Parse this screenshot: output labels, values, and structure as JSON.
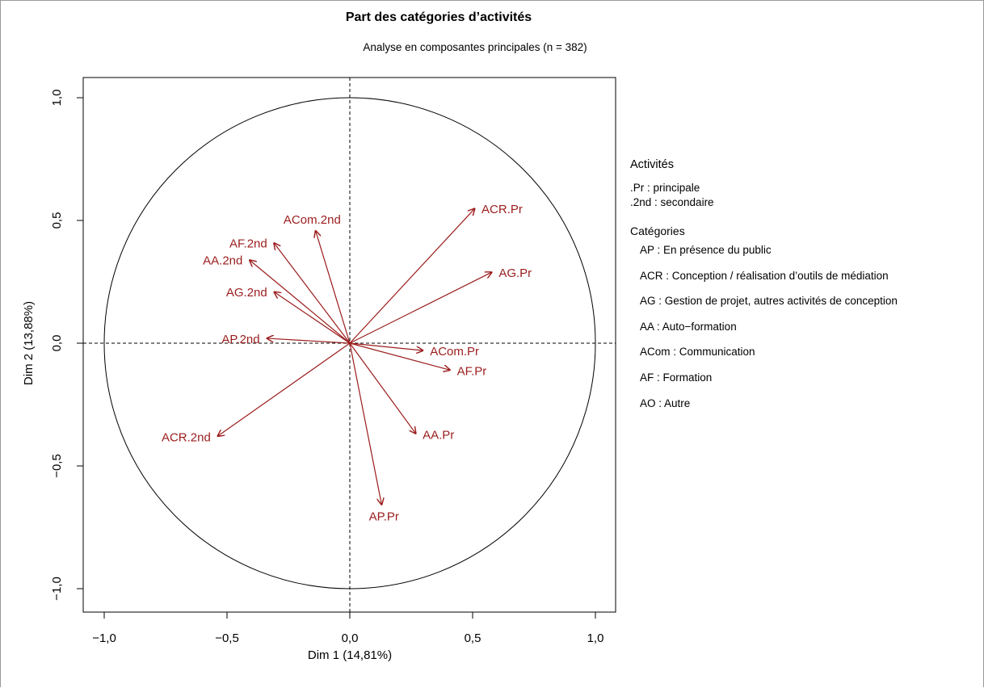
{
  "chart_data": {
    "type": "scatter",
    "title": "Part des catégories d’activités",
    "subtitle": "Analyse en composantes principales (n = 382)",
    "xlabel": "Dim 1 (14,81%)",
    "ylabel": "Dim 2 (13,88%)",
    "xlim": [
      -1.0,
      1.0
    ],
    "ylim": [
      -1.0,
      1.0
    ],
    "x_ticks": [
      -1.0,
      -0.5,
      0.0,
      0.5,
      1.0
    ],
    "y_ticks": [
      -1.0,
      -0.5,
      0.0,
      0.5,
      1.0
    ],
    "x_tick_labels": [
      "−1,0",
      "−0,5",
      "0,0",
      "0,5",
      "1,0"
    ],
    "y_tick_labels": [
      "−1,0",
      "−0,5",
      "0,0",
      "0,5",
      "1,0"
    ],
    "unit_circle": true,
    "grid": false,
    "arrow_color": "#9b1c1c",
    "points": [
      {
        "label": "ACR.Pr",
        "x": 0.51,
        "y": 0.55
      },
      {
        "label": "AG.Pr",
        "x": 0.58,
        "y": 0.29
      },
      {
        "label": "ACom.Pr",
        "x": 0.3,
        "y": -0.03
      },
      {
        "label": "AF.Pr",
        "x": 0.41,
        "y": -0.11
      },
      {
        "label": "AA.Pr",
        "x": 0.27,
        "y": -0.37
      },
      {
        "label": "AP.Pr",
        "x": 0.13,
        "y": -0.66
      },
      {
        "label": "ACom.2nd",
        "x": -0.14,
        "y": 0.46
      },
      {
        "label": "AF.2nd",
        "x": -0.31,
        "y": 0.41
      },
      {
        "label": "AA.2nd",
        "x": -0.41,
        "y": 0.34
      },
      {
        "label": "AG.2nd",
        "x": -0.31,
        "y": 0.21
      },
      {
        "label": "AP.2nd",
        "x": -0.34,
        "y": 0.02
      },
      {
        "label": "ACR.2nd",
        "x": -0.54,
        "y": -0.38
      }
    ]
  },
  "legend": {
    "activities_title": "Activités",
    "activities": [
      ".Pr : principale",
      ".2nd : secondaire"
    ],
    "categories_title": "Catégories",
    "categories": [
      "AP : En présence du public",
      "ACR : Conception / réalisation d’outils de médiation",
      "AG : Gestion de projet, autres activités de conception",
      "AA : Auto−formation",
      "ACom : Communication",
      "AF : Formation",
      "AO : Autre"
    ]
  }
}
